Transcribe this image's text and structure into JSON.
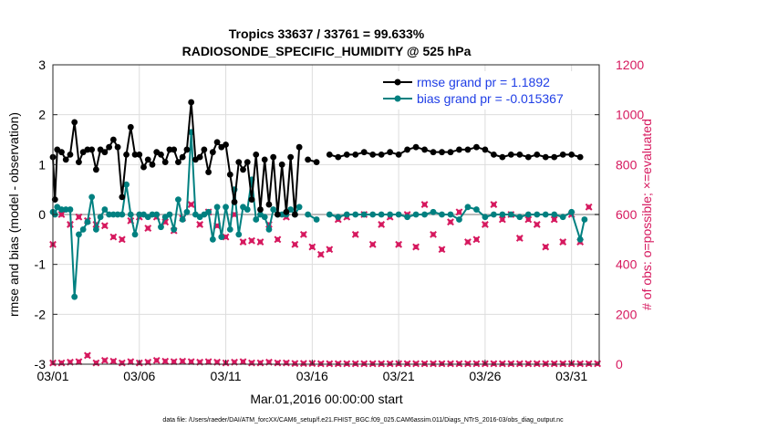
{
  "chart_data": {
    "type": "line",
    "title_line1": "Tropics 33637 / 33761 = 99.633%",
    "title_line2": "RADIOSONDE_SPECIFIC_HUMIDITY @ 525 hPa",
    "xlabel": "Mar.01,2016 00:00:00 start",
    "ylabel_left": "rmse and bias (model - observation)",
    "ylabel_right": "# of obs: o=possible; ×=evaluated",
    "footer": "data file: /Users/raeder/DAI/ATM_forcXX/CAM6_setup/f.e21.FHIST_BGC.f09_025.CAM6assim.011/Diags_NTrS_2016-03/obs_diag_output.nc",
    "x_ticks": [
      {
        "v": 0,
        "label": "03/01"
      },
      {
        "v": 5,
        "label": "03/06"
      },
      {
        "v": 10,
        "label": "03/11"
      },
      {
        "v": 15,
        "label": "03/16"
      },
      {
        "v": 20,
        "label": "03/21"
      },
      {
        "v": 25,
        "label": "03/26"
      },
      {
        "v": 30,
        "label": "03/31"
      }
    ],
    "xlim": [
      0,
      31.6
    ],
    "ylim_left": [
      -3,
      3
    ],
    "yticks_left": [
      "-3",
      "-2",
      "-1",
      "0",
      "1",
      "2",
      "3"
    ],
    "ylim_right": [
      0,
      1200
    ],
    "yticks_right": [
      "0",
      "200",
      "400",
      "600",
      "800",
      "1000",
      "1200"
    ],
    "colors": {
      "rmse": "#000000",
      "bias": "#008080",
      "obs": "#d6185e",
      "zero": "#bbbbbb",
      "legend_text": "#1f3ee6"
    },
    "legend": [
      {
        "name": "rmse grand pr = 1.1892"
      },
      {
        "name": "bias grand pr = -0.015367"
      }
    ],
    "rmse_series": [
      [
        [
          0.0,
          1.15
        ],
        [
          0.12,
          0.3
        ],
        [
          0.25,
          1.3
        ],
        [
          0.5,
          1.25
        ],
        [
          0.75,
          1.1
        ],
        [
          1.0,
          1.2
        ],
        [
          1.25,
          1.85
        ],
        [
          1.5,
          1.05
        ],
        [
          1.75,
          1.25
        ],
        [
          2.0,
          1.3
        ],
        [
          2.25,
          1.3
        ],
        [
          2.5,
          0.9
        ],
        [
          2.75,
          1.3
        ],
        [
          3.0,
          1.25
        ],
        [
          3.25,
          1.35
        ],
        [
          3.5,
          1.5
        ],
        [
          3.75,
          1.35
        ],
        [
          4.0,
          0.35
        ],
        [
          4.25,
          1.2
        ],
        [
          4.5,
          1.75
        ],
        [
          4.75,
          1.2
        ],
        [
          5.0,
          1.2
        ],
        [
          5.25,
          0.95
        ],
        [
          5.5,
          1.1
        ],
        [
          5.75,
          1.0
        ],
        [
          6.0,
          1.25
        ],
        [
          6.25,
          1.2
        ],
        [
          6.5,
          1.05
        ],
        [
          6.75,
          1.3
        ],
        [
          7.0,
          1.3
        ],
        [
          7.25,
          1.05
        ],
        [
          7.5,
          1.15
        ],
        [
          7.75,
          1.3
        ],
        [
          8.0,
          2.25
        ],
        [
          8.25,
          1.1
        ],
        [
          8.5,
          1.15
        ],
        [
          8.75,
          1.3
        ],
        [
          9.0,
          0.85
        ],
        [
          9.25,
          1.25
        ],
        [
          9.5,
          1.45
        ],
        [
          9.75,
          1.35
        ],
        [
          10.0,
          1.4
        ],
        [
          10.25,
          0.8
        ],
        [
          10.5,
          0.25
        ],
        [
          10.75,
          1.05
        ],
        [
          11.0,
          0.9
        ],
        [
          11.25,
          1.05
        ],
        [
          11.5,
          0.3
        ],
        [
          11.75,
          1.2
        ],
        [
          12.0,
          0.1
        ],
        [
          12.25,
          1.1
        ],
        [
          12.5,
          0.2
        ],
        [
          12.75,
          1.15
        ],
        [
          13.0,
          0.0
        ],
        [
          13.25,
          1.0
        ],
        [
          13.5,
          0.05
        ],
        [
          13.75,
          1.15
        ],
        [
          14.0,
          0.0
        ],
        [
          14.25,
          1.35
        ]
      ],
      [
        [
          14.75,
          1.1
        ],
        [
          15.25,
          1.05
        ]
      ],
      [
        [
          16.0,
          1.2
        ],
        [
          16.5,
          1.15
        ],
        [
          17.0,
          1.2
        ],
        [
          17.5,
          1.2
        ],
        [
          18.0,
          1.25
        ],
        [
          18.5,
          1.2
        ],
        [
          19.0,
          1.2
        ],
        [
          19.5,
          1.25
        ],
        [
          20.0,
          1.2
        ],
        [
          20.5,
          1.3
        ],
        [
          21.0,
          1.35
        ],
        [
          21.5,
          1.3
        ],
        [
          22.0,
          1.25
        ],
        [
          22.5,
          1.25
        ],
        [
          23.0,
          1.25
        ],
        [
          23.5,
          1.3
        ],
        [
          24.0,
          1.3
        ],
        [
          24.5,
          1.35
        ],
        [
          25.0,
          1.3
        ],
        [
          25.5,
          1.2
        ],
        [
          26.0,
          1.15
        ],
        [
          26.5,
          1.2
        ],
        [
          27.0,
          1.2
        ],
        [
          27.5,
          1.15
        ],
        [
          28.0,
          1.2
        ],
        [
          28.5,
          1.15
        ],
        [
          29.0,
          1.15
        ],
        [
          29.5,
          1.2
        ],
        [
          30.0,
          1.2
        ],
        [
          30.5,
          1.15
        ]
      ]
    ],
    "bias_series": [
      [
        [
          0.0,
          0.05
        ],
        [
          0.12,
          0.0
        ],
        [
          0.25,
          0.15
        ],
        [
          0.5,
          0.1
        ],
        [
          0.75,
          0.1
        ],
        [
          1.0,
          0.1
        ],
        [
          1.25,
          -1.65
        ],
        [
          1.5,
          -0.4
        ],
        [
          1.75,
          -0.3
        ],
        [
          2.0,
          -0.15
        ],
        [
          2.25,
          0.35
        ],
        [
          2.5,
          -0.3
        ],
        [
          2.75,
          -0.05
        ],
        [
          3.0,
          0.1
        ],
        [
          3.25,
          0.0
        ],
        [
          3.5,
          0.0
        ],
        [
          3.75,
          0.0
        ],
        [
          4.0,
          0.0
        ],
        [
          4.25,
          0.6
        ],
        [
          4.5,
          0.0
        ],
        [
          4.75,
          -0.4
        ],
        [
          5.0,
          0.0
        ],
        [
          5.25,
          0.0
        ],
        [
          5.5,
          -0.05
        ],
        [
          5.75,
          0.0
        ],
        [
          6.0,
          0.0
        ],
        [
          6.25,
          -0.25
        ],
        [
          6.5,
          -0.05
        ],
        [
          6.75,
          0.0
        ],
        [
          7.0,
          -0.3
        ],
        [
          7.25,
          0.3
        ],
        [
          7.5,
          -0.1
        ],
        [
          7.75,
          0.05
        ],
        [
          8.0,
          1.65
        ],
        [
          8.25,
          0.0
        ],
        [
          8.5,
          -0.05
        ],
        [
          8.75,
          0.0
        ],
        [
          9.0,
          0.05
        ],
        [
          9.25,
          -0.5
        ],
        [
          9.5,
          0.15
        ],
        [
          9.75,
          -0.45
        ],
        [
          10.0,
          0.15
        ],
        [
          10.25,
          -0.3
        ],
        [
          10.5,
          0.5
        ],
        [
          10.75,
          -0.4
        ],
        [
          11.0,
          0.15
        ],
        [
          11.25,
          0.1
        ],
        [
          11.5,
          0.7
        ],
        [
          11.75,
          -0.1
        ],
        [
          12.0,
          0.0
        ],
        [
          12.25,
          -0.05
        ],
        [
          12.5,
          -0.3
        ],
        [
          12.75,
          0.1
        ],
        [
          13.0,
          0.0
        ],
        [
          13.25,
          0.0
        ],
        [
          13.5,
          0.0
        ],
        [
          13.75,
          0.1
        ],
        [
          14.0,
          0.0
        ],
        [
          14.25,
          0.15
        ]
      ],
      [
        [
          14.75,
          0.0
        ],
        [
          15.25,
          -0.1
        ]
      ],
      [
        [
          16.0,
          0.0
        ],
        [
          16.5,
          -0.05
        ],
        [
          17.0,
          0.0
        ],
        [
          17.5,
          0.0
        ],
        [
          18.0,
          0.0
        ],
        [
          18.5,
          0.0
        ],
        [
          19.0,
          0.0
        ],
        [
          19.5,
          0.0
        ],
        [
          20.0,
          0.0
        ],
        [
          20.5,
          -0.05
        ],
        [
          21.0,
          0.0
        ],
        [
          21.5,
          0.0
        ],
        [
          22.0,
          0.05
        ],
        [
          22.5,
          0.0
        ],
        [
          23.0,
          0.0
        ],
        [
          23.5,
          -0.1
        ],
        [
          24.0,
          0.15
        ],
        [
          24.5,
          0.1
        ],
        [
          25.0,
          -0.05
        ],
        [
          25.5,
          0.0
        ],
        [
          26.0,
          0.0
        ],
        [
          26.5,
          0.0
        ],
        [
          27.0,
          -0.05
        ],
        [
          27.5,
          0.0
        ],
        [
          28.0,
          0.0
        ],
        [
          28.5,
          0.0
        ],
        [
          29.0,
          0.0
        ],
        [
          29.5,
          -0.05
        ],
        [
          30.0,
          0.05
        ],
        [
          30.5,
          -0.5
        ],
        [
          30.75,
          -0.1
        ]
      ]
    ],
    "obs_upper": [
      [
        0,
        480
      ],
      [
        0.5,
        600
      ],
      [
        1.0,
        560
      ],
      [
        1.5,
        590
      ],
      [
        2.0,
        575
      ],
      [
        2.5,
        560
      ],
      [
        3.0,
        555
      ],
      [
        3.5,
        510
      ],
      [
        4.0,
        500
      ],
      [
        4.5,
        575
      ],
      [
        5.0,
        590
      ],
      [
        5.5,
        545
      ],
      [
        6.0,
        590
      ],
      [
        6.5,
        570
      ],
      [
        7.0,
        535
      ],
      [
        7.5,
        585
      ],
      [
        8.0,
        640
      ],
      [
        8.5,
        560
      ],
      [
        9.0,
        610
      ],
      [
        9.5,
        555
      ],
      [
        10.0,
        510
      ],
      [
        10.5,
        600
      ],
      [
        11.0,
        490
      ],
      [
        11.5,
        495
      ],
      [
        12.0,
        490
      ],
      [
        12.5,
        560
      ],
      [
        13.0,
        500
      ],
      [
        13.5,
        590
      ],
      [
        14.0,
        480
      ],
      [
        14.5,
        520
      ],
      [
        15.0,
        470
      ],
      [
        15.5,
        440
      ],
      [
        16.0,
        460
      ],
      [
        16.5,
        580
      ],
      [
        17.0,
        590
      ],
      [
        17.5,
        520
      ],
      [
        18.0,
        600
      ],
      [
        18.5,
        480
      ],
      [
        19.0,
        560
      ],
      [
        19.5,
        590
      ],
      [
        20.0,
        480
      ],
      [
        20.5,
        600
      ],
      [
        21.0,
        470
      ],
      [
        21.5,
        640
      ],
      [
        22.0,
        520
      ],
      [
        22.5,
        460
      ],
      [
        23.0,
        570
      ],
      [
        23.5,
        610
      ],
      [
        24.0,
        490
      ],
      [
        24.5,
        500
      ],
      [
        25.0,
        560
      ],
      [
        25.5,
        640
      ],
      [
        26.0,
        580
      ],
      [
        26.5,
        600
      ],
      [
        27.0,
        505
      ],
      [
        27.5,
        580
      ],
      [
        28.0,
        560
      ],
      [
        28.5,
        470
      ],
      [
        29.0,
        580
      ],
      [
        29.5,
        490
      ],
      [
        30.0,
        600
      ],
      [
        30.5,
        490
      ],
      [
        31.0,
        630
      ]
    ],
    "obs_lower": [
      [
        0,
        5
      ],
      [
        0.5,
        5
      ],
      [
        1.0,
        8
      ],
      [
        1.5,
        10
      ],
      [
        2.0,
        35
      ],
      [
        2.5,
        5
      ],
      [
        3.0,
        15
      ],
      [
        3.5,
        12
      ],
      [
        4.0,
        5
      ],
      [
        4.5,
        10
      ],
      [
        5.0,
        5
      ],
      [
        5.5,
        8
      ],
      [
        6.0,
        15
      ],
      [
        6.5,
        12
      ],
      [
        7.0,
        10
      ],
      [
        7.5,
        12
      ],
      [
        8.0,
        10
      ],
      [
        8.5,
        8
      ],
      [
        9.0,
        10
      ],
      [
        9.5,
        8
      ],
      [
        10.0,
        5
      ],
      [
        10.5,
        8
      ],
      [
        11.0,
        10
      ],
      [
        11.5,
        5
      ],
      [
        12.0,
        5
      ],
      [
        12.5,
        8
      ],
      [
        13.0,
        5
      ],
      [
        13.5,
        5
      ],
      [
        14.0,
        3
      ],
      [
        14.5,
        3
      ],
      [
        15.0,
        3
      ],
      [
        15.5,
        2
      ],
      [
        16.0,
        2
      ],
      [
        16.5,
        2
      ],
      [
        17.0,
        2
      ],
      [
        17.5,
        2
      ],
      [
        18.0,
        2
      ],
      [
        18.5,
        2
      ],
      [
        19.0,
        2
      ],
      [
        19.5,
        2
      ],
      [
        20.0,
        2
      ],
      [
        20.5,
        2
      ],
      [
        21.0,
        2
      ],
      [
        21.5,
        2
      ],
      [
        22.0,
        2
      ],
      [
        22.5,
        2
      ],
      [
        23.0,
        2
      ],
      [
        23.5,
        2
      ],
      [
        24.0,
        2
      ],
      [
        24.5,
        2
      ],
      [
        25.0,
        2
      ],
      [
        25.5,
        2
      ],
      [
        26.0,
        2
      ],
      [
        26.5,
        2
      ],
      [
        27.0,
        2
      ],
      [
        27.5,
        2
      ],
      [
        28.0,
        2
      ],
      [
        28.5,
        2
      ],
      [
        29.0,
        2
      ],
      [
        29.5,
        2
      ],
      [
        30.0,
        2
      ],
      [
        30.5,
        2
      ],
      [
        31.0,
        2
      ],
      [
        31.5,
        2
      ]
    ]
  }
}
